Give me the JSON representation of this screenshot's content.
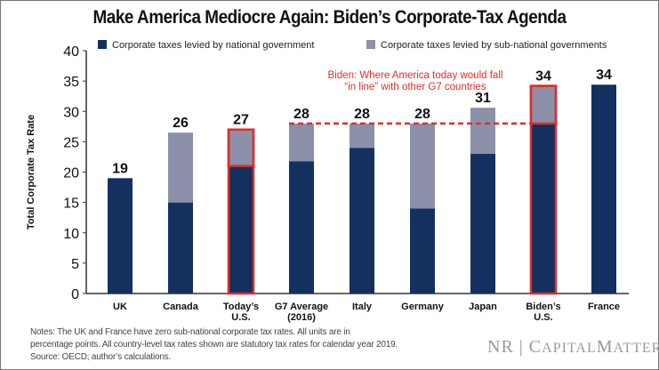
{
  "chart_data": {
    "type": "bar",
    "stacked": true,
    "title": "Make America Mediocre Again: Biden’s Corporate-Tax Agenda",
    "ylabel": "Total Corporate Tax Rate",
    "xlabel": "",
    "ylim": [
      0,
      40
    ],
    "yticks": [
      0,
      5,
      10,
      15,
      20,
      25,
      30,
      35,
      40
    ],
    "grid": false,
    "legend_position": "top",
    "categories": [
      [
        "UK"
      ],
      [
        "Canada"
      ],
      [
        "Today’s",
        "U.S."
      ],
      [
        "G7 Average",
        "(2016)"
      ],
      [
        "Italy"
      ],
      [
        "Germany"
      ],
      [
        "Japan"
      ],
      [
        "Biden’s",
        "U.S."
      ],
      [
        "France"
      ]
    ],
    "series": [
      {
        "name": "Corporate taxes levied by national government",
        "color": "#13305f",
        "values": [
          19,
          15,
          21,
          21.8,
          24,
          14,
          23,
          28,
          34.4
        ]
      },
      {
        "name": "Corporate taxes levied by sub-national governments",
        "color": "#8c90a8",
        "values": [
          0,
          11.5,
          6,
          6.2,
          4,
          14,
          7.6,
          6.2,
          0
        ]
      }
    ],
    "data_labels": [
      "19",
      "26",
      "27",
      "28",
      "28",
      "28",
      "31",
      "34",
      "34"
    ],
    "highlighted": [
      "Today’s U.S.",
      "Biden’s U.S."
    ],
    "highlight_color": "#d9302c",
    "reference_line": {
      "value": 28,
      "style": "dashed",
      "color": "#d9302c"
    },
    "annotation": [
      "Biden: Where America today would fall",
      "“in line” with other G7 countries"
    ]
  },
  "notes": [
    "Notes: The UK and France have zero sub-national corporate tax rates. All units are in",
    "percentage points. All country-level tax rates shown are statutory tax rates for calendar year 2019.",
    "Source: OECD; author’s calculations."
  ],
  "logo": "NR | CapitalMatters"
}
